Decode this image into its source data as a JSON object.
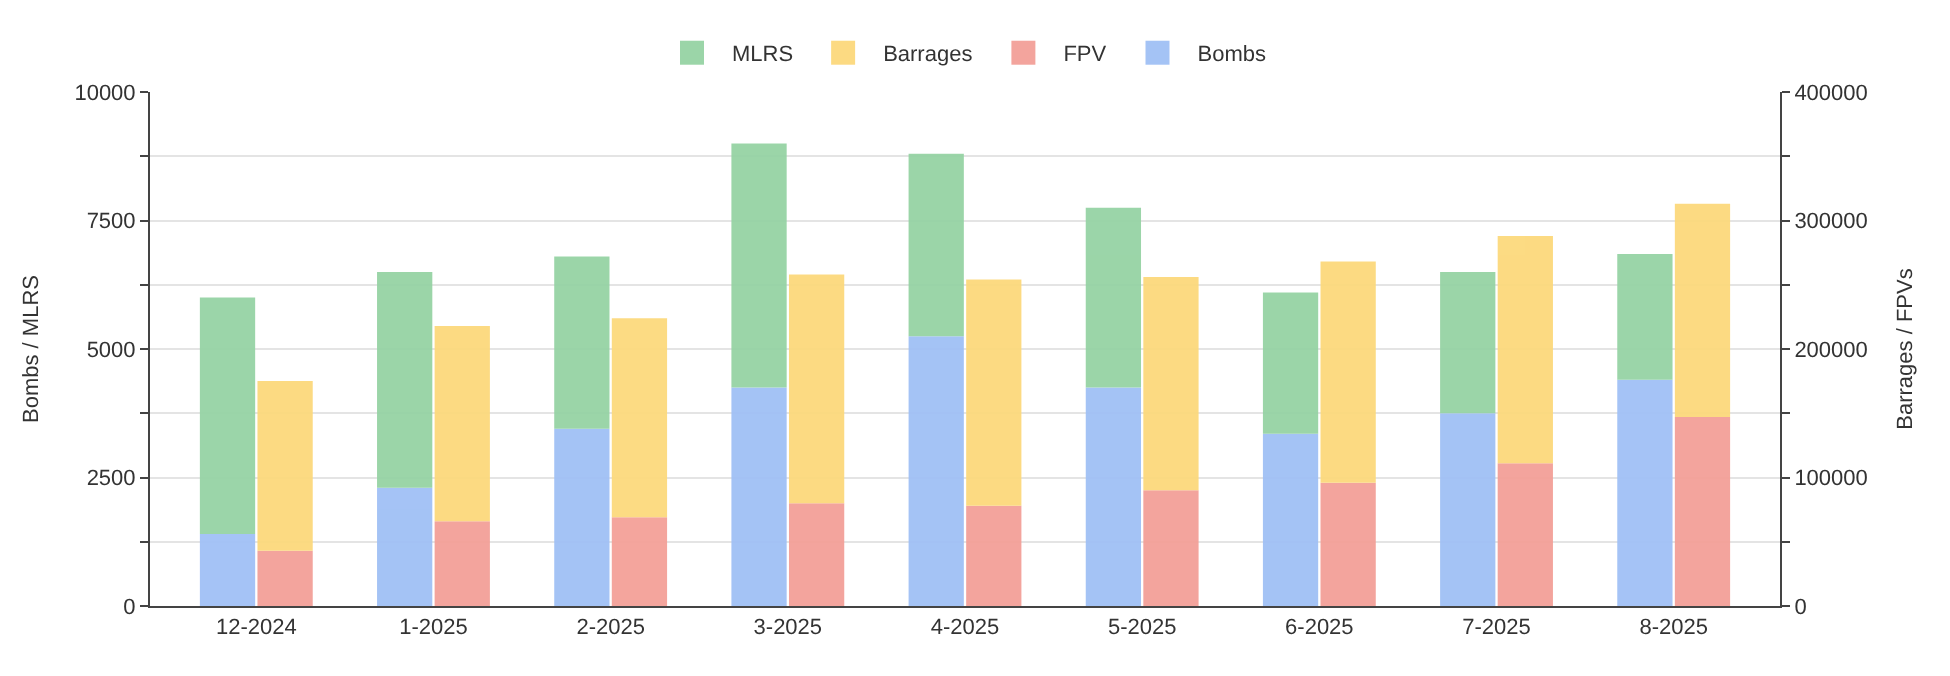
{
  "chart_data": {
    "type": "bar",
    "stacked": true,
    "ylabel": "Bombs / MLRS",
    "y2label": "Barrages / FPVs",
    "categories": [
      "12-2024",
      "1-2025",
      "2-2025",
      "3-2025",
      "4-2025",
      "5-2025",
      "6-2025",
      "7-2025",
      "8-2025"
    ],
    "series": [
      {
        "name": "Bombs",
        "color": "#a0c0f5",
        "values": [
          1400,
          2300,
          3450,
          4250,
          5250,
          4250,
          3350,
          3750,
          4400
        ]
      },
      {
        "name": "FPV",
        "color": "#f3a098",
        "axis": "y2",
        "values": [
          43000,
          66000,
          69000,
          80000,
          78000,
          90000,
          96000,
          111000,
          147000
        ]
      },
      {
        "name": "Barrages",
        "color": "#fcd97c",
        "axis": "y2",
        "values": [
          132000,
          152000,
          155000,
          178000,
          176000,
          166000,
          172000,
          177000,
          166000
        ]
      },
      {
        "name": "MLRS",
        "color": "#96d3a4",
        "values": [
          4600,
          4200,
          3350,
          4750,
          3550,
          3500,
          2750,
          2750,
          2450
        ]
      }
    ],
    "ylim": [
      0,
      10000
    ],
    "yticks": [
      0,
      {
        "value": 1250,
        "label": null
      },
      2500,
      {
        "value": 3750,
        "label": null
      },
      5000,
      {
        "value": 6250,
        "label": null
      },
      7500,
      {
        "value": 8750,
        "label": null
      },
      10000
    ],
    "y2lim": [
      0,
      400000
    ],
    "y2ticks": [
      0,
      {
        "value": 50000,
        "label": null
      },
      100000,
      {
        "value": 150000,
        "label": null
      },
      200000,
      {
        "value": 250000,
        "label": null
      },
      300000,
      {
        "value": 350000,
        "label": null
      },
      400000
    ],
    "grid": "y",
    "legend": "top"
  }
}
